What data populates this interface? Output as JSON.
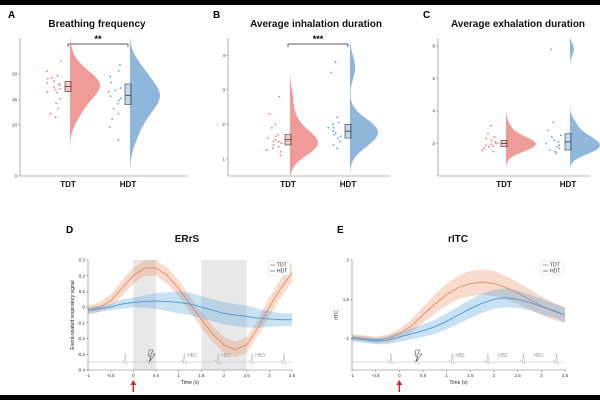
{
  "chart_data": [
    {
      "panel": "A",
      "type": "raincloud",
      "title": "Breathing frequency",
      "categories": [
        "TDT",
        "HDT"
      ],
      "ylim": [
        0,
        27
      ],
      "yticks": [
        "0",
        "10",
        "15",
        "20"
      ],
      "significance": "**",
      "colors": {
        "TDT": "#ea7a75",
        "HDT": "#6a9fd0"
      },
      "series": [
        {
          "name": "TDT",
          "median": 17.5,
          "q1": 16.5,
          "q3": 18.5,
          "kde_mode": 18.0,
          "points": [
            19,
            18.2,
            22.5,
            11.5,
            16.4,
            17.8,
            14.2,
            18.5,
            19.2,
            13.2,
            17.1,
            20.5,
            16.9,
            18.0,
            17.4,
            19.6,
            15.1,
            12.2,
            16.3
          ]
        },
        {
          "name": "HDT",
          "median": 15.8,
          "q1": 14.0,
          "q3": 18.0,
          "kde_mode": 17.0,
          "points": [
            21.8,
            16.5,
            19.4,
            15.2,
            14.1,
            17.2,
            9.6,
            7.0,
            13.2,
            18.3,
            12.2,
            16.8,
            14.8,
            11.1,
            20.6,
            15.6
          ]
        }
      ]
    },
    {
      "panel": "B",
      "type": "raincloud",
      "title": "Average inhalation duration",
      "categories": [
        "TDT",
        "HDT"
      ],
      "ylim": [
        0.5,
        4.5
      ],
      "yticks": [
        "1",
        "2",
        "3",
        "4"
      ],
      "significance": "***",
      "colors": {
        "TDT": "#ea7a75",
        "HDT": "#6a9fd0"
      },
      "series": [
        {
          "name": "TDT",
          "median": 1.55,
          "q1": 1.4,
          "q3": 1.7,
          "kde_mode": 1.5,
          "points": [
            2.8,
            2.3,
            1.9,
            1.6,
            1.4,
            1.3,
            1.2,
            1.5,
            1.7,
            1.1,
            1.35,
            1.45,
            1.55,
            1.25,
            1.65,
            2.0,
            1.5
          ]
        },
        {
          "name": "HDT",
          "median": 1.8,
          "q1": 1.6,
          "q3": 2.0,
          "kde_mode": 1.7,
          "points": [
            3.8,
            3.5,
            2.2,
            2.0,
            1.9,
            1.8,
            1.7,
            1.6,
            1.5,
            1.4,
            1.3,
            1.9,
            2.05,
            1.75,
            1.65
          ]
        }
      ]
    },
    {
      "panel": "C",
      "type": "raincloud",
      "title": "Average exhalation duration",
      "categories": [
        "TDT",
        "HDT"
      ],
      "ylim": [
        0,
        8.5
      ],
      "yticks": [
        "2",
        "4",
        "6",
        "8"
      ],
      "significance": "",
      "colors": {
        "TDT": "#ea7a75",
        "HDT": "#6a9fd0"
      },
      "series": [
        {
          "name": "TDT",
          "median": 2.0,
          "q1": 1.8,
          "q3": 2.2,
          "kde_mode": 2.0,
          "points": [
            3.1,
            2.6,
            2.4,
            2.2,
            2.1,
            2.0,
            1.9,
            1.8,
            1.7,
            1.6,
            1.5,
            2.05,
            1.95,
            2.3,
            1.85
          ]
        },
        {
          "name": "HDT",
          "median": 2.1,
          "q1": 1.6,
          "q3": 2.6,
          "kde_mode": 2.0,
          "points": [
            7.8,
            3.3,
            2.8,
            2.5,
            2.2,
            2.0,
            1.9,
            1.8,
            1.6,
            1.5,
            1.4,
            2.4,
            2.1,
            1.7
          ]
        }
      ]
    },
    {
      "panel": "D",
      "type": "line",
      "title": "ERrS",
      "xlabel": "Time (s)",
      "ylabel": "Event-related respiratory signal",
      "xlim": [
        -1,
        3.5
      ],
      "ylim": [
        -0.4,
        0.3
      ],
      "xticks": [
        "-1",
        "-0.5",
        "0",
        "0.5",
        "1",
        "1.5",
        "2",
        "2.5",
        "3",
        "3.5"
      ],
      "yticks": [
        "-0.4",
        "-0.3",
        "-0.2",
        "-0.1",
        "0",
        "0.1",
        "0.2",
        "0.3"
      ],
      "shaded_windows": [
        [
          0,
          0.5
        ],
        [
          1.5,
          2.5
        ]
      ],
      "heartbeat_labels": [
        "HB1",
        "HB2",
        "HB3"
      ],
      "legend": [
        "TDT",
        "HDT"
      ],
      "colors": {
        "TDT": "#e8885a",
        "HDT": "#4a9ad6"
      },
      "x": [
        -1,
        -0.75,
        -0.5,
        -0.25,
        0,
        0.25,
        0.5,
        0.75,
        1,
        1.25,
        1.5,
        1.75,
        2,
        2.25,
        2.5,
        2.75,
        3,
        3.25,
        3.5
      ],
      "series": [
        {
          "name": "TDT",
          "values": [
            -0.02,
            0.0,
            0.04,
            0.12,
            0.2,
            0.25,
            0.25,
            0.2,
            0.12,
            0.02,
            -0.08,
            -0.17,
            -0.24,
            -0.27,
            -0.24,
            -0.13,
            0.0,
            0.12,
            0.22
          ],
          "ci": [
            0.03,
            0.03,
            0.04,
            0.05,
            0.05,
            0.05,
            0.05,
            0.05,
            0.05,
            0.05,
            0.05,
            0.05,
            0.05,
            0.05,
            0.05,
            0.05,
            0.06,
            0.06,
            0.06
          ]
        },
        {
          "name": "HDT",
          "values": [
            -0.02,
            -0.01,
            0.0,
            0.02,
            0.03,
            0.035,
            0.04,
            0.035,
            0.03,
            0.02,
            0.0,
            -0.02,
            -0.04,
            -0.05,
            -0.06,
            -0.07,
            -0.075,
            -0.08,
            -0.08
          ],
          "ci": [
            0.02,
            0.02,
            0.02,
            0.03,
            0.03,
            0.04,
            0.05,
            0.06,
            0.07,
            0.07,
            0.07,
            0.07,
            0.07,
            0.07,
            0.07,
            0.06,
            0.05,
            0.04,
            0.04
          ]
        }
      ]
    },
    {
      "panel": "E",
      "type": "line",
      "title": "rITC",
      "xlabel": "Time (s)",
      "ylabel": "rITC",
      "xlim": [
        -1,
        3.5
      ],
      "ylim": [
        0.6,
        2.0
      ],
      "xticks": [
        "-1",
        "-0.5",
        "0",
        "0.5",
        "1",
        "1.5",
        "2",
        "2.5",
        "3",
        "3.5"
      ],
      "yticks": [
        "1",
        "1.5",
        "2"
      ],
      "heartbeat_labels": [
        "HB1",
        "HB2",
        "HB3"
      ],
      "legend": [
        "TDT",
        "HDT"
      ],
      "colors": {
        "TDT": "#e8885a",
        "HDT": "#4a9ad6"
      },
      "x": [
        -1,
        -0.75,
        -0.5,
        -0.25,
        0,
        0.25,
        0.5,
        0.75,
        1,
        1.25,
        1.5,
        1.75,
        2,
        2.25,
        2.5,
        2.75,
        3,
        3.25,
        3.5
      ],
      "series": [
        {
          "name": "TDT",
          "values": [
            1.02,
            1.0,
            0.98,
            1.0,
            1.06,
            1.16,
            1.3,
            1.44,
            1.56,
            1.65,
            1.7,
            1.72,
            1.7,
            1.65,
            1.58,
            1.5,
            1.42,
            1.35,
            1.3
          ],
          "ci": [
            0.04,
            0.04,
            0.04,
            0.05,
            0.06,
            0.08,
            0.1,
            0.12,
            0.14,
            0.15,
            0.16,
            0.16,
            0.16,
            0.15,
            0.14,
            0.13,
            0.12,
            0.11,
            0.1
          ]
        },
        {
          "name": "HDT",
          "values": [
            1.0,
            0.99,
            0.97,
            0.98,
            1.02,
            1.06,
            1.1,
            1.15,
            1.22,
            1.3,
            1.38,
            1.45,
            1.5,
            1.52,
            1.5,
            1.46,
            1.41,
            1.36,
            1.3
          ],
          "ci": [
            0.04,
            0.04,
            0.04,
            0.05,
            0.06,
            0.07,
            0.08,
            0.09,
            0.1,
            0.11,
            0.12,
            0.12,
            0.12,
            0.12,
            0.11,
            0.1,
            0.1,
            0.09,
            0.09
          ]
        }
      ]
    }
  ]
}
